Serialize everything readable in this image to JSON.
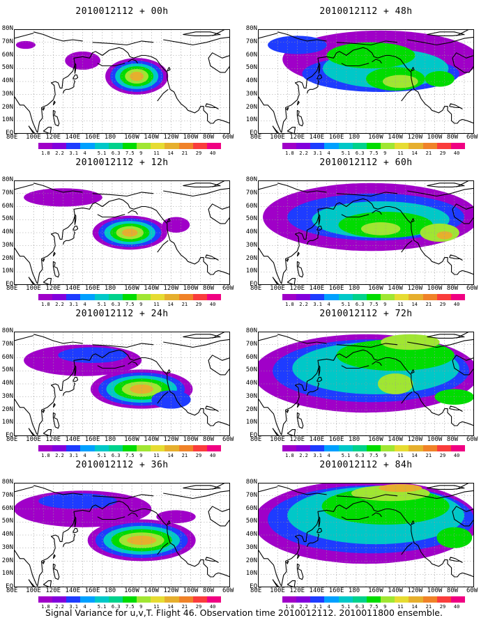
{
  "panels": [
    {
      "title": "2010012112 + 00h",
      "forecast_hour": 0
    },
    {
      "title": "2010012112 + 48h",
      "forecast_hour": 48
    },
    {
      "title": "2010012112 + 12h",
      "forecast_hour": 12
    },
    {
      "title": "2010012112 + 60h",
      "forecast_hour": 60
    },
    {
      "title": "2010012112 + 24h",
      "forecast_hour": 24
    },
    {
      "title": "2010012112 + 72h",
      "forecast_hour": 72
    },
    {
      "title": "2010012112 + 36h",
      "forecast_hour": 36
    },
    {
      "title": "2010012112 + 84h",
      "forecast_hour": 84
    }
  ],
  "longitude_labels": [
    "80E",
    "100E",
    "120E",
    "140E",
    "160E",
    "180",
    "160W",
    "140W",
    "120W",
    "100W",
    "80W",
    "60W"
  ],
  "latitude_labels": [
    "EQ",
    "10N",
    "20N",
    "30N",
    "40N",
    "50N",
    "60N",
    "70N",
    "80N"
  ],
  "colorbar": {
    "labels": [
      "1.8",
      "2.2",
      "3.1",
      "4",
      "5.1",
      "6.3",
      "7.5",
      "9",
      "11",
      "14",
      "21",
      "29",
      "40"
    ],
    "colors": [
      "#a000c8",
      "#8200dc",
      "#1e3cff",
      "#00a0ff",
      "#00c8c8",
      "#00d28c",
      "#00dc00",
      "#a0e632",
      "#e6dc32",
      "#e6af2d",
      "#f08228",
      "#fa3c3c",
      "#f00082"
    ]
  },
  "caption": "Signal Variance for u,v,T. Flight 46. Observation time 2010012112. 2010011800 ensemble."
}
